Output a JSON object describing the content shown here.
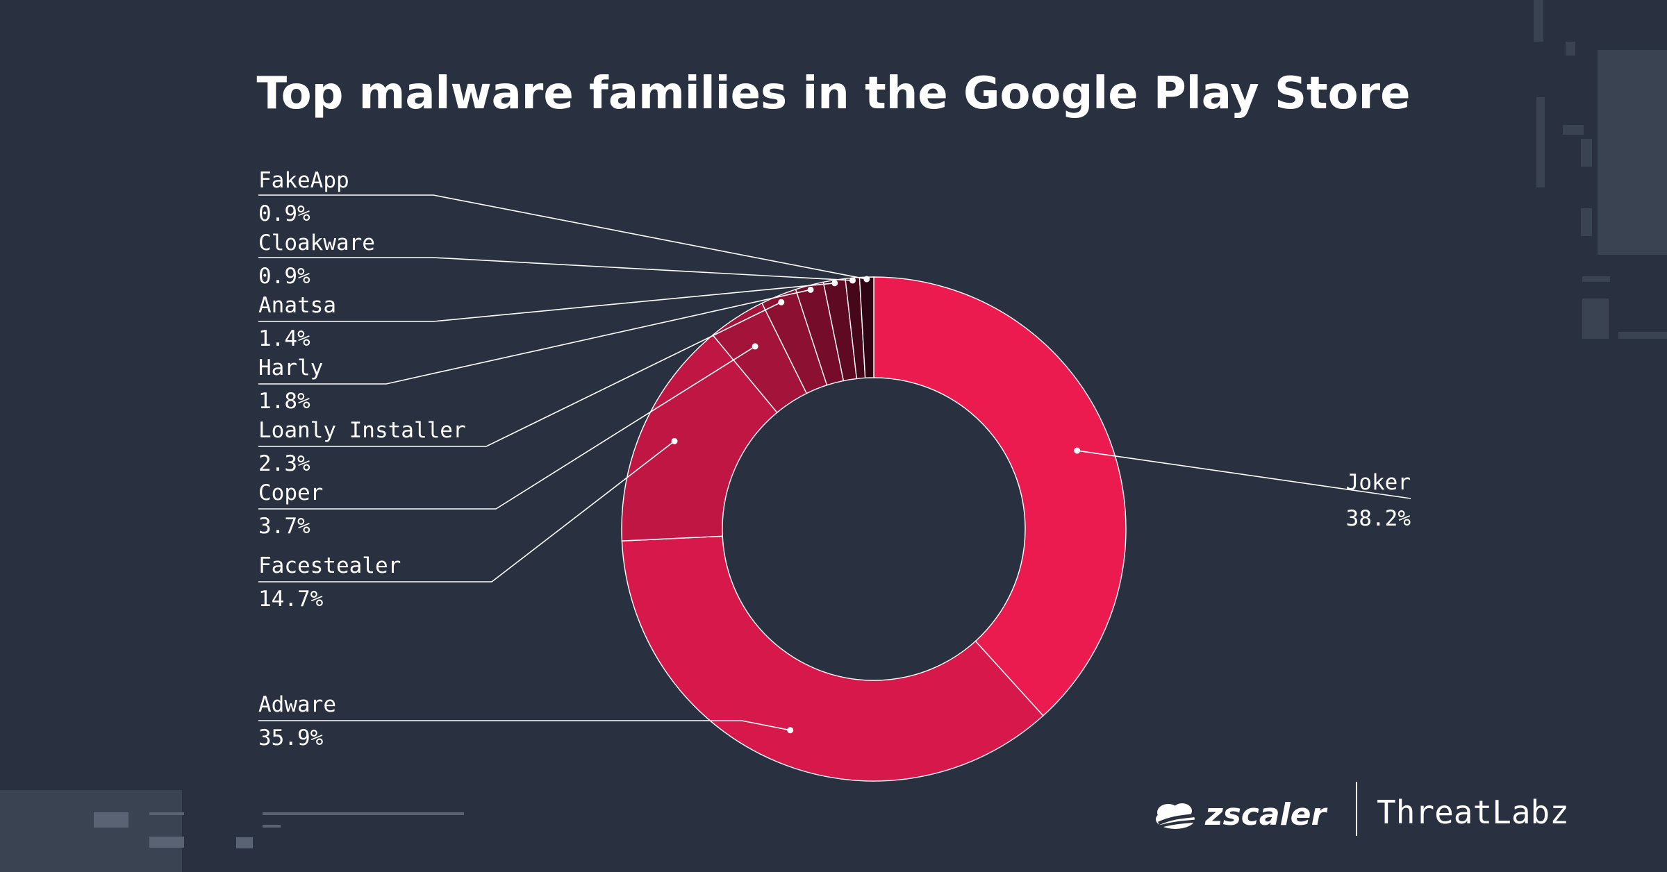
{
  "chart_data": {
    "type": "pie",
    "title": "Top malware families in the Google Play Store",
    "slices": [
      {
        "label": "Joker",
        "value": 38.2,
        "value_text": "38.2%",
        "color": "#ec1b4f"
      },
      {
        "label": "Adware",
        "value": 35.9,
        "value_text": "35.9%",
        "color": "#d6194a"
      },
      {
        "label": "Facestealer",
        "value": 14.7,
        "value_text": "14.7%",
        "color": "#c01643"
      },
      {
        "label": "Coper",
        "value": 3.7,
        "value_text": "3.7%",
        "color": "#a4133a"
      },
      {
        "label": "Loanly Installer",
        "value": 2.3,
        "value_text": "2.3%",
        "color": "#8b1031"
      },
      {
        "label": "Harly",
        "value": 1.8,
        "value_text": "1.8%",
        "color": "#750d2a"
      },
      {
        "label": "Anatsa",
        "value": 1.4,
        "value_text": "1.4%",
        "color": "#5e0a22"
      },
      {
        "label": "Cloakware",
        "value": 0.9,
        "value_text": "0.9%",
        "color": "#47071a"
      },
      {
        "label": "FakeApp",
        "value": 0.9,
        "value_text": "0.9%",
        "color": "#300513"
      }
    ],
    "donut": true,
    "direction": "clockwise from top",
    "legend": "callout labels (left and right)"
  },
  "branding": {
    "company": "zscaler",
    "team": "ThreatLabz"
  },
  "colors": {
    "background": "#293140",
    "text": "#ffffff",
    "divider": "#ffffff"
  }
}
